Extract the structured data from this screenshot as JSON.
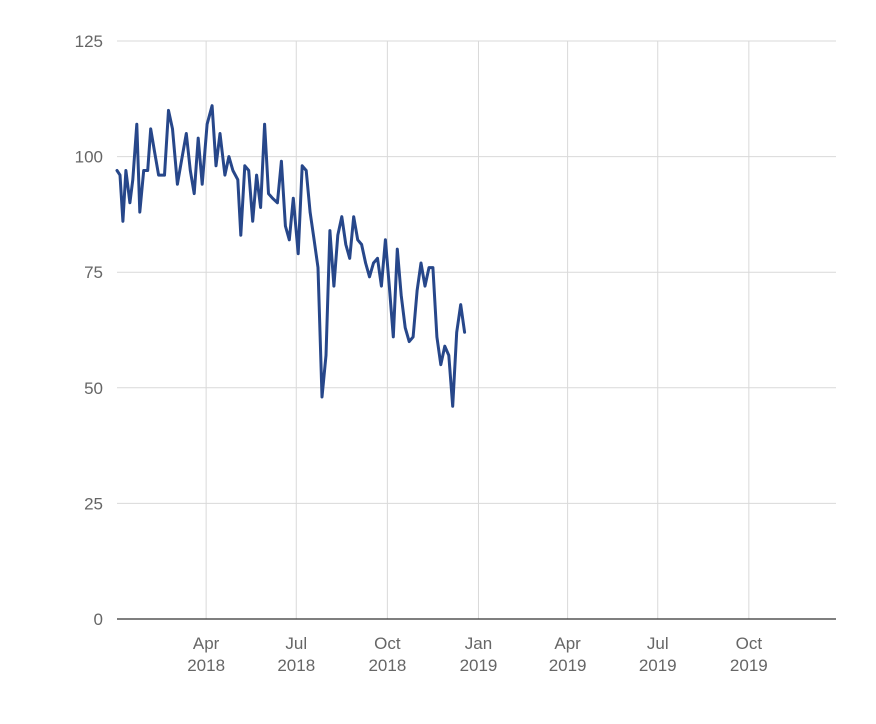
{
  "chart_data": {
    "type": "line",
    "title": "",
    "xlabel": "",
    "ylabel": "",
    "ylim": [
      0,
      125
    ],
    "xlim": [
      "2018-01-01",
      "2019-12-28"
    ],
    "grid": true,
    "legend": "none",
    "y_ticks": [
      {
        "value": 0,
        "label": "0"
      },
      {
        "value": 25,
        "label": "25"
      },
      {
        "value": 50,
        "label": "50"
      },
      {
        "value": 75,
        "label": "75"
      },
      {
        "value": 100,
        "label": "100"
      },
      {
        "value": 125,
        "label": "125"
      }
    ],
    "x_ticks": [
      {
        "date": "2018-04-01",
        "month": "Apr",
        "year": "2018"
      },
      {
        "date": "2018-07-01",
        "month": "Jul",
        "year": "2018"
      },
      {
        "date": "2018-10-01",
        "month": "Oct",
        "year": "2018"
      },
      {
        "date": "2019-01-01",
        "month": "Jan",
        "year": "2019"
      },
      {
        "date": "2019-04-01",
        "month": "Apr",
        "year": "2019"
      },
      {
        "date": "2019-07-01",
        "month": "Jul",
        "year": "2019"
      },
      {
        "date": "2019-10-01",
        "month": "Oct",
        "year": "2019"
      }
    ],
    "series": [
      {
        "color": "#27478a",
        "points": [
          [
            "2018-01-01",
            97
          ],
          [
            "2018-01-04",
            96
          ],
          [
            "2018-01-07",
            86
          ],
          [
            "2018-01-10",
            97
          ],
          [
            "2018-01-14",
            90
          ],
          [
            "2018-01-17",
            95
          ],
          [
            "2018-01-21",
            107
          ],
          [
            "2018-01-24",
            88
          ],
          [
            "2018-01-28",
            97
          ],
          [
            "2018-02-01",
            97
          ],
          [
            "2018-02-04",
            106
          ],
          [
            "2018-02-08",
            101
          ],
          [
            "2018-02-12",
            96
          ],
          [
            "2018-02-18",
            96
          ],
          [
            "2018-02-22",
            110
          ],
          [
            "2018-02-26",
            106
          ],
          [
            "2018-03-03",
            94
          ],
          [
            "2018-03-07",
            99
          ],
          [
            "2018-03-12",
            105
          ],
          [
            "2018-03-16",
            97
          ],
          [
            "2018-03-20",
            92
          ],
          [
            "2018-03-24",
            104
          ],
          [
            "2018-03-28",
            94
          ],
          [
            "2018-04-02",
            107
          ],
          [
            "2018-04-07",
            111
          ],
          [
            "2018-04-11",
            98
          ],
          [
            "2018-04-15",
            105
          ],
          [
            "2018-04-20",
            96
          ],
          [
            "2018-04-24",
            100
          ],
          [
            "2018-04-28",
            97
          ],
          [
            "2018-05-03",
            95
          ],
          [
            "2018-05-06",
            83
          ],
          [
            "2018-05-10",
            98
          ],
          [
            "2018-05-14",
            97
          ],
          [
            "2018-05-18",
            86
          ],
          [
            "2018-05-22",
            96
          ],
          [
            "2018-05-26",
            89
          ],
          [
            "2018-05-30",
            107
          ],
          [
            "2018-06-03",
            92
          ],
          [
            "2018-06-07",
            91
          ],
          [
            "2018-06-12",
            90
          ],
          [
            "2018-06-16",
            99
          ],
          [
            "2018-06-20",
            85
          ],
          [
            "2018-06-24",
            82
          ],
          [
            "2018-06-28",
            91
          ],
          [
            "2018-07-03",
            79
          ],
          [
            "2018-07-07",
            98
          ],
          [
            "2018-07-11",
            97
          ],
          [
            "2018-07-15",
            88
          ],
          [
            "2018-07-19",
            82
          ],
          [
            "2018-07-23",
            76
          ],
          [
            "2018-07-27",
            48
          ],
          [
            "2018-07-31",
            57
          ],
          [
            "2018-08-04",
            84
          ],
          [
            "2018-08-08",
            72
          ],
          [
            "2018-08-12",
            83
          ],
          [
            "2018-08-16",
            87
          ],
          [
            "2018-08-20",
            81
          ],
          [
            "2018-08-24",
            78
          ],
          [
            "2018-08-28",
            87
          ],
          [
            "2018-09-01",
            82
          ],
          [
            "2018-09-05",
            81
          ],
          [
            "2018-09-09",
            77
          ],
          [
            "2018-09-13",
            74
          ],
          [
            "2018-09-17",
            77
          ],
          [
            "2018-09-21",
            78
          ],
          [
            "2018-09-25",
            72
          ],
          [
            "2018-09-29",
            82
          ],
          [
            "2018-10-03",
            72
          ],
          [
            "2018-10-07",
            61
          ],
          [
            "2018-10-11",
            80
          ],
          [
            "2018-10-15",
            70
          ],
          [
            "2018-10-19",
            63
          ],
          [
            "2018-10-23",
            60
          ],
          [
            "2018-10-27",
            61
          ],
          [
            "2018-10-31",
            71
          ],
          [
            "2018-11-04",
            77
          ],
          [
            "2018-11-08",
            72
          ],
          [
            "2018-11-12",
            76
          ],
          [
            "2018-11-16",
            76
          ],
          [
            "2018-11-20",
            61
          ],
          [
            "2018-11-24",
            55
          ],
          [
            "2018-11-28",
            59
          ],
          [
            "2018-12-02",
            57
          ],
          [
            "2018-12-06",
            46
          ],
          [
            "2018-12-10",
            62
          ],
          [
            "2018-12-14",
            68
          ],
          [
            "2018-12-18",
            62
          ]
        ]
      }
    ]
  }
}
